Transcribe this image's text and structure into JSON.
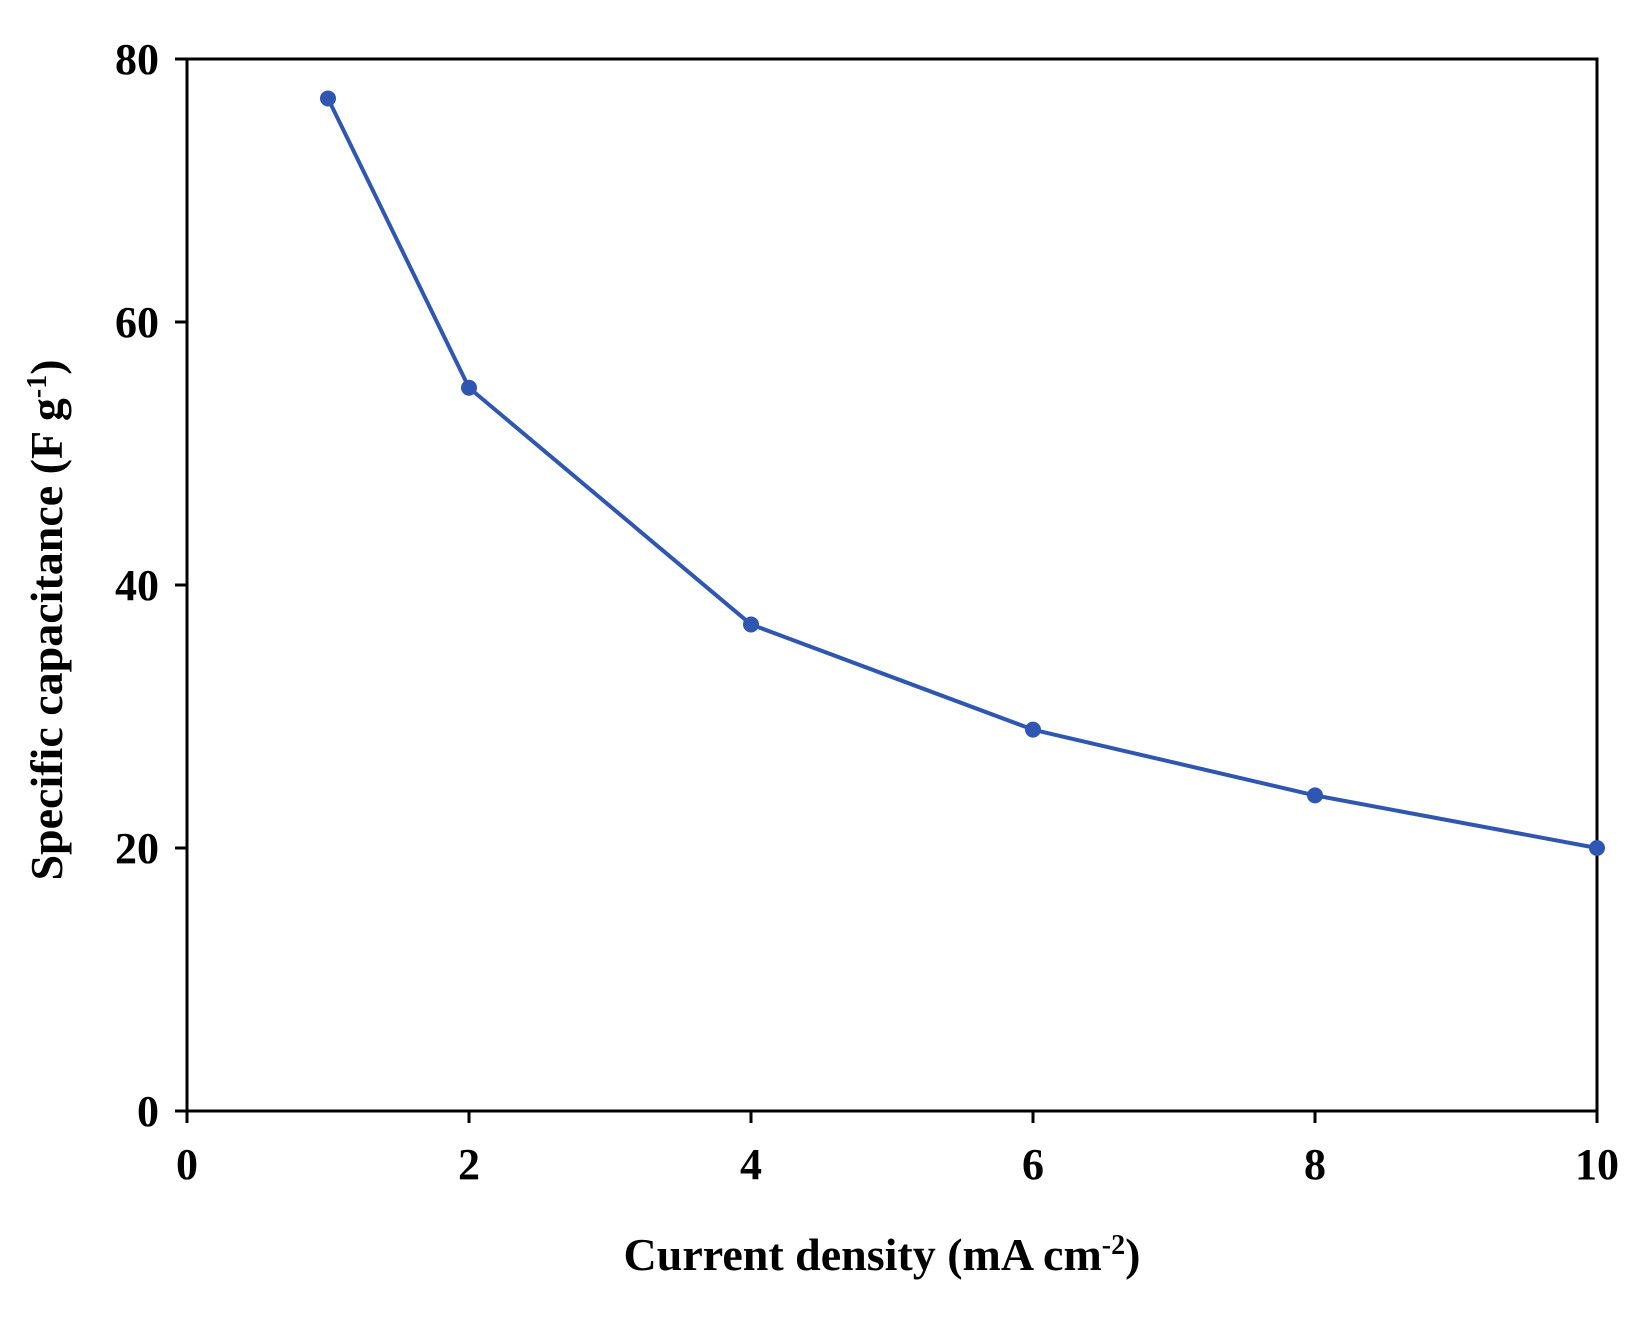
{
  "chart_data": {
    "type": "line",
    "x": [
      1,
      2,
      4,
      6,
      8,
      10
    ],
    "series": [
      {
        "values": [
          77,
          55,
          37,
          29,
          24,
          20
        ],
        "color": "#2f56b0"
      }
    ],
    "xlabel": {
      "main": "Current density (mA cm",
      "sup": "-2",
      "end": ")"
    },
    "ylabel": {
      "main": "Specific capacitance (F g",
      "sup": "-1",
      "end": ")"
    },
    "xlim": [
      0,
      10
    ],
    "ylim": [
      0,
      80
    ],
    "xticks": [
      "0",
      "2",
      "4",
      "6",
      "8",
      "10"
    ],
    "yticks": [
      "0",
      "20",
      "40",
      "60",
      "80"
    ],
    "grid": false,
    "axis_color": "#000000"
  }
}
